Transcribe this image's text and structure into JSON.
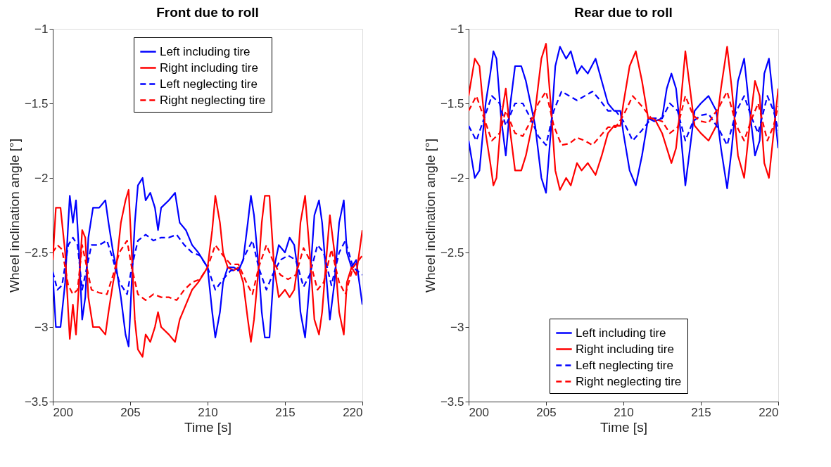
{
  "chart_data": [
    {
      "type": "line",
      "title": "Front due to roll",
      "xlabel": "Time [s]",
      "ylabel": "Wheel inclination angle [°]",
      "xlim": [
        200,
        220
      ],
      "xticks": [
        200,
        205,
        210,
        215,
        220
      ],
      "ylim": [
        -3.5,
        -1
      ],
      "yticks": [
        -3.5,
        -3,
        -2.5,
        -2,
        -1.5,
        -1
      ],
      "legend": "top",
      "series": [
        {
          "name": "Left including tire",
          "color": "#0000ff",
          "line_style": "solid",
          "x": [
            200,
            200.2,
            200.5,
            200.8,
            201.0,
            201.1,
            201.3,
            201.5,
            201.7,
            201.9,
            202.1,
            202.3,
            202.6,
            203.0,
            203.4,
            203.6,
            203.9,
            204.1,
            204.4,
            204.7,
            204.9,
            205.1,
            205.3,
            205.5,
            205.8,
            206.0,
            206.3,
            206.6,
            206.8,
            207.0,
            207.5,
            207.9,
            208.2,
            208.6,
            209.0,
            209.4,
            209.7,
            210.0,
            210.3,
            210.5,
            210.8,
            211.0,
            211.3,
            211.7,
            212.0,
            212.3,
            212.6,
            212.8,
            213.0,
            213.3,
            213.5,
            213.7,
            214.0,
            214.3,
            214.6,
            215.0,
            215.3,
            215.6,
            215.8,
            216.0,
            216.3,
            216.6,
            216.9,
            217.2,
            217.4,
            217.7,
            217.9,
            218.2,
            218.5,
            218.8,
            219.0,
            219.3,
            219.6,
            219.8,
            220
          ],
          "values": [
            -2.65,
            -3.0,
            -3.0,
            -2.7,
            -2.3,
            -2.12,
            -2.3,
            -2.15,
            -2.5,
            -2.95,
            -2.8,
            -2.4,
            -2.2,
            -2.2,
            -2.15,
            -2.3,
            -2.5,
            -2.6,
            -2.8,
            -3.05,
            -3.13,
            -2.7,
            -2.3,
            -2.05,
            -2.0,
            -2.15,
            -2.1,
            -2.2,
            -2.35,
            -2.2,
            -2.15,
            -2.1,
            -2.3,
            -2.35,
            -2.45,
            -2.5,
            -2.55,
            -2.6,
            -2.9,
            -3.07,
            -2.9,
            -2.7,
            -2.6,
            -2.6,
            -2.62,
            -2.55,
            -2.3,
            -2.12,
            -2.25,
            -2.6,
            -2.9,
            -3.07,
            -3.07,
            -2.6,
            -2.45,
            -2.5,
            -2.4,
            -2.45,
            -2.6,
            -2.9,
            -3.07,
            -2.7,
            -2.25,
            -2.15,
            -2.3,
            -2.7,
            -2.95,
            -2.7,
            -2.3,
            -2.15,
            -2.5,
            -2.6,
            -2.55,
            -2.7,
            -2.85
          ]
        },
        {
          "name": "Right including tire",
          "color": "#ff0000",
          "line_style": "solid",
          "x": [
            200,
            200.2,
            200.5,
            200.8,
            201.0,
            201.1,
            201.3,
            201.5,
            201.7,
            201.9,
            202.1,
            202.3,
            202.6,
            203.0,
            203.4,
            203.6,
            203.9,
            204.1,
            204.4,
            204.7,
            204.9,
            205.1,
            205.3,
            205.5,
            205.8,
            206.0,
            206.3,
            206.6,
            206.8,
            207.0,
            207.5,
            207.9,
            208.2,
            208.6,
            209.0,
            209.4,
            209.7,
            210.0,
            210.3,
            210.5,
            210.8,
            211.0,
            211.3,
            211.7,
            212.0,
            212.3,
            212.6,
            212.8,
            213.0,
            213.3,
            213.5,
            213.7,
            214.0,
            214.3,
            214.6,
            215.0,
            215.3,
            215.6,
            215.8,
            216.0,
            216.3,
            216.6,
            216.9,
            217.2,
            217.4,
            217.7,
            217.9,
            218.2,
            218.5,
            218.8,
            219.0,
            219.3,
            219.6,
            219.8,
            220
          ],
          "values": [
            -2.55,
            -2.2,
            -2.2,
            -2.5,
            -2.9,
            -3.08,
            -2.85,
            -3.05,
            -2.7,
            -2.35,
            -2.4,
            -2.8,
            -3.0,
            -3.0,
            -3.05,
            -2.9,
            -2.7,
            -2.6,
            -2.3,
            -2.15,
            -2.08,
            -2.5,
            -2.95,
            -3.15,
            -3.2,
            -3.05,
            -3.1,
            -3.0,
            -2.9,
            -3.0,
            -3.05,
            -3.1,
            -2.95,
            -2.85,
            -2.75,
            -2.7,
            -2.65,
            -2.6,
            -2.35,
            -2.12,
            -2.3,
            -2.5,
            -2.6,
            -2.62,
            -2.6,
            -2.7,
            -2.95,
            -3.1,
            -2.95,
            -2.6,
            -2.3,
            -2.12,
            -2.12,
            -2.6,
            -2.8,
            -2.75,
            -2.8,
            -2.75,
            -2.6,
            -2.3,
            -2.12,
            -2.5,
            -2.95,
            -3.05,
            -2.9,
            -2.5,
            -2.25,
            -2.5,
            -2.9,
            -3.05,
            -2.7,
            -2.6,
            -2.65,
            -2.5,
            -2.35
          ]
        },
        {
          "name": "Left neglecting tire",
          "color": "#0000ff",
          "line_style": "dashed",
          "x": [
            200,
            200.3,
            200.6,
            201,
            201.3,
            201.6,
            201.9,
            202.2,
            202.5,
            203,
            203.5,
            203.9,
            204.3,
            204.8,
            205.1,
            205.5,
            206,
            206.5,
            207,
            207.5,
            208,
            208.5,
            209,
            209.5,
            210,
            210.5,
            211,
            211.5,
            212,
            212.5,
            212.9,
            213.3,
            213.8,
            214.2,
            214.7,
            215.2,
            215.7,
            216.2,
            216.6,
            217.1,
            217.5,
            218,
            218.5,
            218.9,
            219.4,
            220
          ],
          "values": [
            -2.63,
            -2.75,
            -2.72,
            -2.45,
            -2.4,
            -2.45,
            -2.75,
            -2.6,
            -2.45,
            -2.45,
            -2.42,
            -2.55,
            -2.7,
            -2.78,
            -2.6,
            -2.42,
            -2.38,
            -2.42,
            -2.4,
            -2.4,
            -2.38,
            -2.45,
            -2.5,
            -2.52,
            -2.6,
            -2.75,
            -2.68,
            -2.62,
            -2.62,
            -2.5,
            -2.42,
            -2.6,
            -2.75,
            -2.65,
            -2.55,
            -2.52,
            -2.55,
            -2.73,
            -2.65,
            -2.45,
            -2.5,
            -2.72,
            -2.5,
            -2.42,
            -2.6,
            -2.65
          ]
        },
        {
          "name": "Right neglecting tire",
          "color": "#ff0000",
          "line_style": "dashed",
          "x": [
            200,
            200.3,
            200.6,
            201,
            201.3,
            201.6,
            201.9,
            202.2,
            202.5,
            203,
            203.5,
            203.9,
            204.3,
            204.8,
            205.1,
            205.5,
            206,
            206.5,
            207,
            207.5,
            208,
            208.5,
            209,
            209.5,
            210,
            210.5,
            211,
            211.5,
            212,
            212.5,
            212.9,
            213.3,
            213.8,
            214.2,
            214.7,
            215.2,
            215.7,
            216.2,
            216.6,
            217.1,
            217.5,
            218,
            218.5,
            218.9,
            219.4,
            220
          ],
          "values": [
            -2.5,
            -2.45,
            -2.48,
            -2.72,
            -2.78,
            -2.75,
            -2.45,
            -2.6,
            -2.75,
            -2.77,
            -2.78,
            -2.65,
            -2.5,
            -2.42,
            -2.6,
            -2.78,
            -2.82,
            -2.78,
            -2.8,
            -2.8,
            -2.82,
            -2.75,
            -2.7,
            -2.68,
            -2.6,
            -2.45,
            -2.52,
            -2.58,
            -2.58,
            -2.7,
            -2.78,
            -2.6,
            -2.45,
            -2.55,
            -2.65,
            -2.68,
            -2.65,
            -2.47,
            -2.55,
            -2.75,
            -2.7,
            -2.48,
            -2.7,
            -2.78,
            -2.6,
            -2.52
          ]
        }
      ]
    },
    {
      "type": "line",
      "title": "Rear due to roll",
      "xlabel": "Time [s]",
      "ylabel": "Wheel inclination angle [°]",
      "xlim": [
        200,
        220
      ],
      "xticks": [
        200,
        205,
        210,
        215,
        220
      ],
      "ylim": [
        -3.5,
        -1
      ],
      "yticks": [
        -3.5,
        -3,
        -2.5,
        -2,
        -1.5,
        -1
      ],
      "legend": "bottom",
      "series": [
        {
          "name": "Left including tire",
          "color": "#0000ff",
          "line_style": "solid",
          "x": [
            200,
            200.4,
            200.7,
            201.1,
            201.4,
            201.6,
            201.8,
            202.1,
            202.4,
            202.7,
            203.0,
            203.4,
            203.7,
            204.0,
            204.3,
            204.7,
            205.0,
            205.3,
            205.6,
            205.9,
            206.3,
            206.6,
            207.0,
            207.3,
            207.7,
            208.2,
            208.6,
            209.0,
            209.4,
            209.8,
            210.0,
            210.4,
            210.8,
            211.2,
            211.6,
            212.0,
            212.5,
            212.8,
            213.1,
            213.4,
            213.7,
            214.0,
            214.3,
            214.6,
            215.0,
            215.5,
            216.0,
            216.3,
            216.7,
            217.0,
            217.4,
            217.8,
            218.1,
            218.5,
            218.8,
            219.1,
            219.4,
            219.7,
            220
          ],
          "values": [
            -1.75,
            -2.0,
            -1.95,
            -1.5,
            -1.3,
            -1.15,
            -1.2,
            -1.6,
            -1.85,
            -1.5,
            -1.25,
            -1.25,
            -1.35,
            -1.5,
            -1.65,
            -2.0,
            -2.1,
            -1.7,
            -1.25,
            -1.12,
            -1.2,
            -1.15,
            -1.3,
            -1.25,
            -1.3,
            -1.2,
            -1.35,
            -1.5,
            -1.55,
            -1.55,
            -1.7,
            -1.95,
            -2.05,
            -1.85,
            -1.6,
            -1.62,
            -1.6,
            -1.4,
            -1.3,
            -1.4,
            -1.7,
            -2.05,
            -1.8,
            -1.55,
            -1.5,
            -1.45,
            -1.55,
            -1.8,
            -2.07,
            -1.8,
            -1.35,
            -1.2,
            -1.5,
            -1.85,
            -1.75,
            -1.3,
            -1.2,
            -1.5,
            -1.8
          ]
        },
        {
          "name": "Right including tire",
          "color": "#ff0000",
          "line_style": "solid",
          "x": [
            200,
            200.4,
            200.7,
            201.1,
            201.4,
            201.6,
            201.8,
            202.1,
            202.4,
            202.7,
            203.0,
            203.4,
            203.7,
            204.0,
            204.3,
            204.7,
            205.0,
            205.3,
            205.6,
            205.9,
            206.3,
            206.6,
            207.0,
            207.3,
            207.7,
            208.2,
            208.6,
            209.0,
            209.4,
            209.8,
            210.0,
            210.4,
            210.8,
            211.2,
            211.6,
            212.0,
            212.5,
            212.8,
            213.1,
            213.4,
            213.7,
            214.0,
            214.3,
            214.6,
            215.0,
            215.5,
            216.0,
            216.3,
            216.7,
            217.0,
            217.4,
            217.8,
            218.1,
            218.5,
            218.8,
            219.1,
            219.4,
            219.7,
            220
          ],
          "values": [
            -1.45,
            -1.2,
            -1.25,
            -1.7,
            -1.9,
            -2.05,
            -2.0,
            -1.6,
            -1.4,
            -1.7,
            -1.95,
            -1.95,
            -1.85,
            -1.7,
            -1.55,
            -1.2,
            -1.1,
            -1.5,
            -1.95,
            -2.08,
            -2.0,
            -2.05,
            -1.9,
            -1.95,
            -1.9,
            -1.98,
            -1.85,
            -1.7,
            -1.65,
            -1.65,
            -1.5,
            -1.25,
            -1.15,
            -1.35,
            -1.6,
            -1.6,
            -1.7,
            -1.8,
            -1.9,
            -1.8,
            -1.5,
            -1.15,
            -1.4,
            -1.65,
            -1.7,
            -1.75,
            -1.65,
            -1.4,
            -1.12,
            -1.4,
            -1.85,
            -2.0,
            -1.7,
            -1.35,
            -1.45,
            -1.9,
            -2.0,
            -1.7,
            -1.4
          ]
        },
        {
          "name": "Left neglecting tire",
          "color": "#0000ff",
          "line_style": "dashed",
          "x": [
            200,
            200.5,
            201,
            201.5,
            202,
            202.4,
            203,
            203.5,
            204,
            204.5,
            205,
            205.5,
            206,
            206.5,
            207,
            207.5,
            208,
            208.5,
            209,
            209.5,
            210,
            210.6,
            211.2,
            211.8,
            212.5,
            213,
            213.5,
            214,
            214.5,
            215,
            215.5,
            216.2,
            216.7,
            217.3,
            217.8,
            218.3,
            218.7,
            219.3,
            219.7,
            220
          ],
          "values": [
            -1.65,
            -1.75,
            -1.6,
            -1.45,
            -1.5,
            -1.65,
            -1.5,
            -1.5,
            -1.6,
            -1.72,
            -1.78,
            -1.55,
            -1.42,
            -1.45,
            -1.48,
            -1.45,
            -1.42,
            -1.48,
            -1.55,
            -1.55,
            -1.62,
            -1.75,
            -1.68,
            -1.6,
            -1.6,
            -1.5,
            -1.55,
            -1.75,
            -1.62,
            -1.58,
            -1.57,
            -1.68,
            -1.78,
            -1.55,
            -1.45,
            -1.6,
            -1.7,
            -1.45,
            -1.55,
            -1.68
          ]
        },
        {
          "name": "Right neglecting tire",
          "color": "#ff0000",
          "line_style": "dashed",
          "x": [
            200,
            200.5,
            201,
            201.5,
            202,
            202.4,
            203,
            203.5,
            204,
            204.5,
            205,
            205.5,
            206,
            206.5,
            207,
            207.5,
            208,
            208.5,
            209,
            209.5,
            210,
            210.6,
            211.2,
            211.8,
            212.5,
            213,
            213.5,
            214,
            214.5,
            215,
            215.5,
            216.2,
            216.7,
            217.3,
            217.8,
            218.3,
            218.7,
            219.3,
            219.7,
            220
          ],
          "values": [
            -1.55,
            -1.45,
            -1.6,
            -1.75,
            -1.7,
            -1.55,
            -1.7,
            -1.72,
            -1.62,
            -1.5,
            -1.42,
            -1.65,
            -1.78,
            -1.77,
            -1.73,
            -1.75,
            -1.78,
            -1.72,
            -1.66,
            -1.66,
            -1.58,
            -1.45,
            -1.52,
            -1.6,
            -1.62,
            -1.7,
            -1.66,
            -1.45,
            -1.58,
            -1.62,
            -1.63,
            -1.52,
            -1.42,
            -1.65,
            -1.75,
            -1.6,
            -1.5,
            -1.75,
            -1.65,
            -1.52
          ]
        }
      ]
    }
  ]
}
